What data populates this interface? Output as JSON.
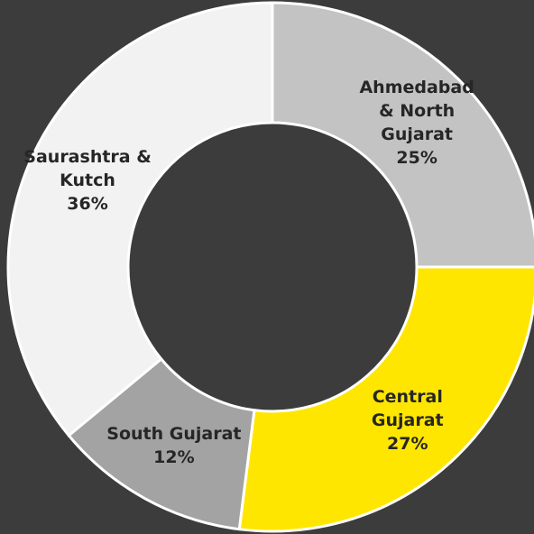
{
  "chart_data": {
    "type": "donut",
    "categories": [
      "Ahmedabad & North Gujarat",
      "Central Gujarat",
      "South Gujarat",
      "Saurashtra & Kutch"
    ],
    "values": [
      25,
      27,
      12,
      36
    ],
    "value_labels": [
      "25%",
      "27%",
      "12%",
      "36%"
    ],
    "colors": [
      "#c3c3c3",
      "#ffe600",
      "#a3a3a3",
      "#f2f2f2"
    ]
  }
}
